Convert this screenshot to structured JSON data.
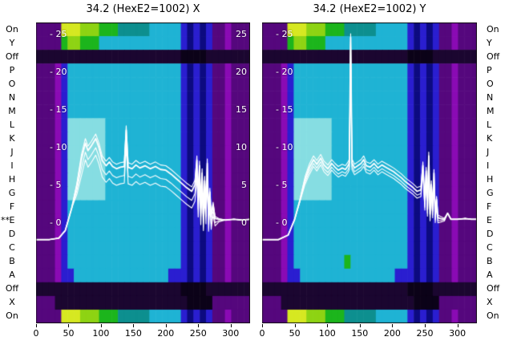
{
  "titles_note": "dual beam-profile spectrogram display",
  "annotation": {
    "text": "**",
    "target_row": "E"
  },
  "palette": {
    "p": "#55077d",
    "m": "#8a0ab4",
    "d": "#1b0630",
    "k": "#0b0218",
    "b": "#2a1ed0",
    "n": "#0c0a80",
    "c": "#1fb3d4",
    "C": "#86dde2",
    "t": "#0d8f8f",
    "g": "#1cb51c",
    "G": "#8ed313",
    "y": "#d6e821"
  },
  "chart_data": [
    {
      "type": "heatmap",
      "title": "34.2 (HexE2=1002) X",
      "x_label_ticks": [
        0,
        50,
        100,
        150,
        200,
        250,
        300
      ],
      "x_range": [
        0,
        330
      ],
      "row_labels": [
        "On",
        "Y",
        "Off",
        "P",
        "O",
        "N",
        "M",
        "L",
        "K",
        "J",
        "I",
        "H",
        "G",
        "F",
        "E",
        "D",
        "C",
        "B",
        "A",
        "Off",
        "X",
        "On"
      ],
      "value_ticks": [
        25,
        20,
        15,
        10,
        5,
        0
      ],
      "value_range": [
        -3,
        26
      ],
      "tick_dash": "- ",
      "grid": [
        "ppppyyyGGGgggtttttcccccbnbnbppmppp",
        "ppppgGGgggcccccccccccccbnbnbppmppp",
        "dddddddddddddddddddddddkkkkddddddd",
        "pppmbccccccccccccccccccbnbnbppmppp",
        "pppmbccccccccccccccccccbnbnbppmppp",
        "pppmbccccccccccccccccccbnbnbppmppp",
        "pppmbccccccccccccccccccbnbnbppmppp",
        "pppmbCCCCCCccccccccccccbnbnbppmppp",
        "pppmbCCCCCCccccccccccccbnbnbppmppp",
        "pppmbCCCCCCccccccccccccbnbnbppmppp",
        "pppmbCCCCCCccccccccccccbnbnbppmppp",
        "pppmbCCCCCCccccccccccccbnbnbppmppp",
        "pppmbCCCCCCccccccccccccbnbnbppmppp",
        "pppmbccccccccccccccccccbnbnbppmppp",
        "pppmbccccccccccccccccccbnbnbppmppp",
        "pppmbccccccccccccccccccbnbnbppmppp",
        "pppmbccccccccccccccccccbnbnbppmppp",
        "pppmbccccccccccccccccccbnbnbppmppp",
        "pppmbbcccccccccccccccbbbnbnbppmppp",
        "dddddddddddddddddddddddkkkkddddddd",
        "pppdddddddddddddddddddddkkkkpppppp",
        "ppppyyyGGGgggtttttcccccbnbnbppmppp"
      ],
      "overlay_line": {
        "color": "#ffffff",
        "bundle_offsets": [
          0,
          -1.2,
          -2.2,
          0.6
        ],
        "points": [
          [
            0,
            -2.2
          ],
          [
            20,
            -2.2
          ],
          [
            35,
            -2.0
          ],
          [
            45,
            -1.0
          ],
          [
            55,
            2.0
          ],
          [
            63,
            5.0
          ],
          [
            70,
            8.5
          ],
          [
            76,
            10.6
          ],
          [
            80,
            9.6
          ],
          [
            85,
            10.2
          ],
          [
            92,
            11.2
          ],
          [
            97,
            10.0
          ],
          [
            102,
            8.3
          ],
          [
            108,
            7.6
          ],
          [
            113,
            8.1
          ],
          [
            118,
            7.5
          ],
          [
            124,
            7.2
          ],
          [
            130,
            7.4
          ],
          [
            136,
            7.5
          ],
          [
            139,
            12.3
          ],
          [
            142,
            7.4
          ],
          [
            148,
            7.2
          ],
          [
            154,
            7.7
          ],
          [
            160,
            7.3
          ],
          [
            168,
            7.6
          ],
          [
            176,
            7.2
          ],
          [
            184,
            7.5
          ],
          [
            192,
            7.1
          ],
          [
            200,
            7.0
          ],
          [
            208,
            6.5
          ],
          [
            216,
            5.9
          ],
          [
            224,
            5.3
          ],
          [
            232,
            4.7
          ],
          [
            240,
            4.2
          ],
          [
            245,
            5.1
          ],
          [
            248,
            8.3
          ],
          [
            250,
            3.0
          ],
          [
            252,
            7.6
          ],
          [
            254,
            2.0
          ],
          [
            256,
            6.6
          ],
          [
            258,
            1.2
          ],
          [
            260,
            5.6
          ],
          [
            262,
            2.1
          ],
          [
            264,
            7.9
          ],
          [
            266,
            1.0
          ],
          [
            268,
            4.1
          ],
          [
            270,
            0.8
          ],
          [
            273,
            2.4
          ],
          [
            276,
            0.6
          ],
          [
            282,
            0.5
          ],
          [
            292,
            0.4
          ],
          [
            305,
            0.5
          ],
          [
            318,
            0.4
          ],
          [
            330,
            0.5
          ]
        ]
      }
    },
    {
      "type": "heatmap",
      "title": "34.2 (HexE2=1002) Y",
      "x_label_ticks": [
        0,
        50,
        100,
        150,
        200,
        250,
        300
      ],
      "x_range": [
        0,
        330
      ],
      "row_labels": [
        "On",
        "Y",
        "Off",
        "P",
        "O",
        "N",
        "M",
        "L",
        "K",
        "J",
        "I",
        "H",
        "G",
        "F",
        "E",
        "D",
        "C",
        "B",
        "A",
        "Off",
        "X",
        "On"
      ],
      "value_ticks": [
        25,
        20,
        15,
        10,
        5,
        0
      ],
      "value_range": [
        -3,
        26
      ],
      "tick_dash": "- ",
      "grid": [
        "ppppyyyGGGgggtttttcccccbnbnbppmppp",
        "ppppgGGgggcccccccccccccbnbnbppmppp",
        "dddddddddddddddddddddddkkkkddddddd",
        "pppmbccccccccccccccccccbnbnbppmppp",
        "pppmbccccccccccccccccccbnbnbppmppp",
        "pppmbccccccccccccccccccbnbnbppmppp",
        "pppmbccccccccccccccccccbnbnbppmppp",
        "pppmbCCCCCCccccccccccccbnbnbppmppp",
        "pppmbCCCCCCccccccccccccbnbnbppmppp",
        "pppmbCCCCCCccccccccccccbnbnbppmppp",
        "pppmbCCCCCCccccccccccccbnbnbppmppp",
        "pppmbCCCCCCccccccccccccbnbnbppmppp",
        "pppmbCCCCCCccccccccccccbnbnbppmppp",
        "pppmbccccccccccccccccccbnbnbppmppp",
        "pppmbccccccccccccccccccbnbnbppmppp",
        "pppmbccccccccccccccccccbnbnbppmppp",
        "pppmbccccccccccccccccccbnbnbppmppp",
        "pppmbccccccccgcccccccccbnbnbppmppp",
        "pppmbbcccccccccccccccbbbnbnbppmppp",
        "dddddddddddddddddddddddkkkkddddddd",
        "pppdddddddddddddddddddddkkkkpppppp",
        "ppppyyyGGGgggtttttcccccbnbnbppmppp"
      ],
      "overlay_line": {
        "color": "#ffffff",
        "bundle_offsets": [
          0,
          -0.5,
          0.5,
          -0.9
        ],
        "points": [
          [
            0,
            -2.2
          ],
          [
            25,
            -2.2
          ],
          [
            40,
            -1.6
          ],
          [
            50,
            0.5
          ],
          [
            58,
            3.0
          ],
          [
            66,
            5.8
          ],
          [
            73,
            7.4
          ],
          [
            79,
            8.4
          ],
          [
            84,
            7.8
          ],
          [
            90,
            8.6
          ],
          [
            95,
            7.7
          ],
          [
            101,
            7.2
          ],
          [
            107,
            7.9
          ],
          [
            112,
            7.4
          ],
          [
            117,
            7.0
          ],
          [
            123,
            7.3
          ],
          [
            128,
            7.1
          ],
          [
            132,
            7.6
          ],
          [
            134,
            8.0
          ],
          [
            136,
            24.6
          ],
          [
            138,
            8.0
          ],
          [
            142,
            7.3
          ],
          [
            147,
            7.6
          ],
          [
            152,
            7.9
          ],
          [
            156,
            8.4
          ],
          [
            160,
            7.6
          ],
          [
            166,
            7.4
          ],
          [
            172,
            7.9
          ],
          [
            178,
            7.3
          ],
          [
            184,
            7.7
          ],
          [
            190,
            7.4
          ],
          [
            196,
            7.1
          ],
          [
            202,
            6.8
          ],
          [
            208,
            6.4
          ],
          [
            214,
            6.0
          ],
          [
            220,
            5.5
          ],
          [
            226,
            5.1
          ],
          [
            232,
            4.7
          ],
          [
            238,
            4.2
          ],
          [
            244,
            4.4
          ],
          [
            247,
            7.6
          ],
          [
            250,
            2.6
          ],
          [
            252,
            6.9
          ],
          [
            254,
            1.8
          ],
          [
            256,
            8.9
          ],
          [
            258,
            1.2
          ],
          [
            260,
            5.1
          ],
          [
            262,
            1.6
          ],
          [
            264,
            6.6
          ],
          [
            266,
            0.9
          ],
          [
            268,
            3.1
          ],
          [
            270,
            0.7
          ],
          [
            274,
            0.6
          ],
          [
            280,
            0.5
          ],
          [
            285,
            1.3
          ],
          [
            290,
            0.5
          ],
          [
            300,
            0.5
          ],
          [
            312,
            0.6
          ],
          [
            322,
            0.5
          ],
          [
            330,
            0.5
          ]
        ]
      }
    }
  ]
}
